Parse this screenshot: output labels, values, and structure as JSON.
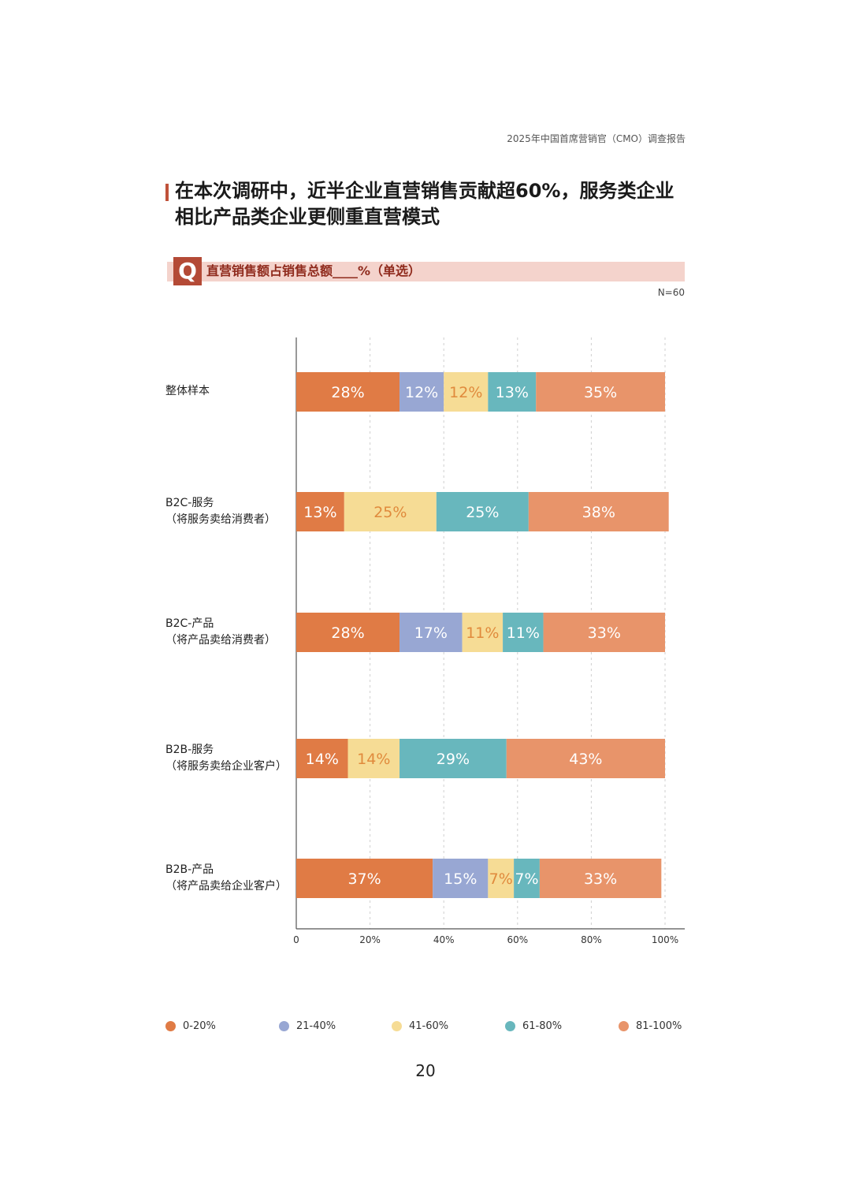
{
  "header": {
    "report_title": "2025年中国首席营销官（CMO）调查报告"
  },
  "headline": {
    "line1": "在本次调研中，近半企业直营销售贡献超60%，服务类企业",
    "line2": "相比产品类企业更侧重直营模式"
  },
  "question": {
    "icon_letter": "Q",
    "text": "直营销售额占销售总额____%（单选）"
  },
  "sample_size": "N=60",
  "page_number": "20",
  "chart_data": {
    "type": "bar",
    "orientation": "horizontal",
    "stacked": true,
    "categories": [
      {
        "line1": "整体样本",
        "line2": ""
      },
      {
        "line1": "B2C-服务",
        "line2": "（将服务卖给消费者）"
      },
      {
        "line1": "B2C-产品",
        "line2": "（将产品卖给消费者）"
      },
      {
        "line1": "B2B-服务",
        "line2": "（将服务卖给企业客户）"
      },
      {
        "line1": "B2B-产品",
        "line2": "（将产品卖给企业客户）"
      }
    ],
    "series": [
      {
        "name": "0-20%",
        "color": "#e07b45",
        "values": [
          28,
          13,
          28,
          14,
          37
        ]
      },
      {
        "name": "21-40%",
        "color": "#98a7d3",
        "values": [
          12,
          0,
          17,
          0,
          15
        ]
      },
      {
        "name": "41-60%",
        "color": "#f6dc95",
        "values": [
          12,
          25,
          11,
          14,
          7
        ]
      },
      {
        "name": "61-80%",
        "color": "#68b7bd",
        "values": [
          13,
          25,
          11,
          29,
          7
        ]
      },
      {
        "name": "81-100%",
        "color": "#e8946a",
        "values": [
          35,
          38,
          33,
          43,
          33
        ]
      }
    ],
    "x_ticks": [
      "0",
      "20%",
      "40%",
      "60%",
      "80%",
      "100%"
    ],
    "xlim": [
      0,
      100
    ],
    "grid": "vertical dashed",
    "legend_position": "bottom"
  }
}
